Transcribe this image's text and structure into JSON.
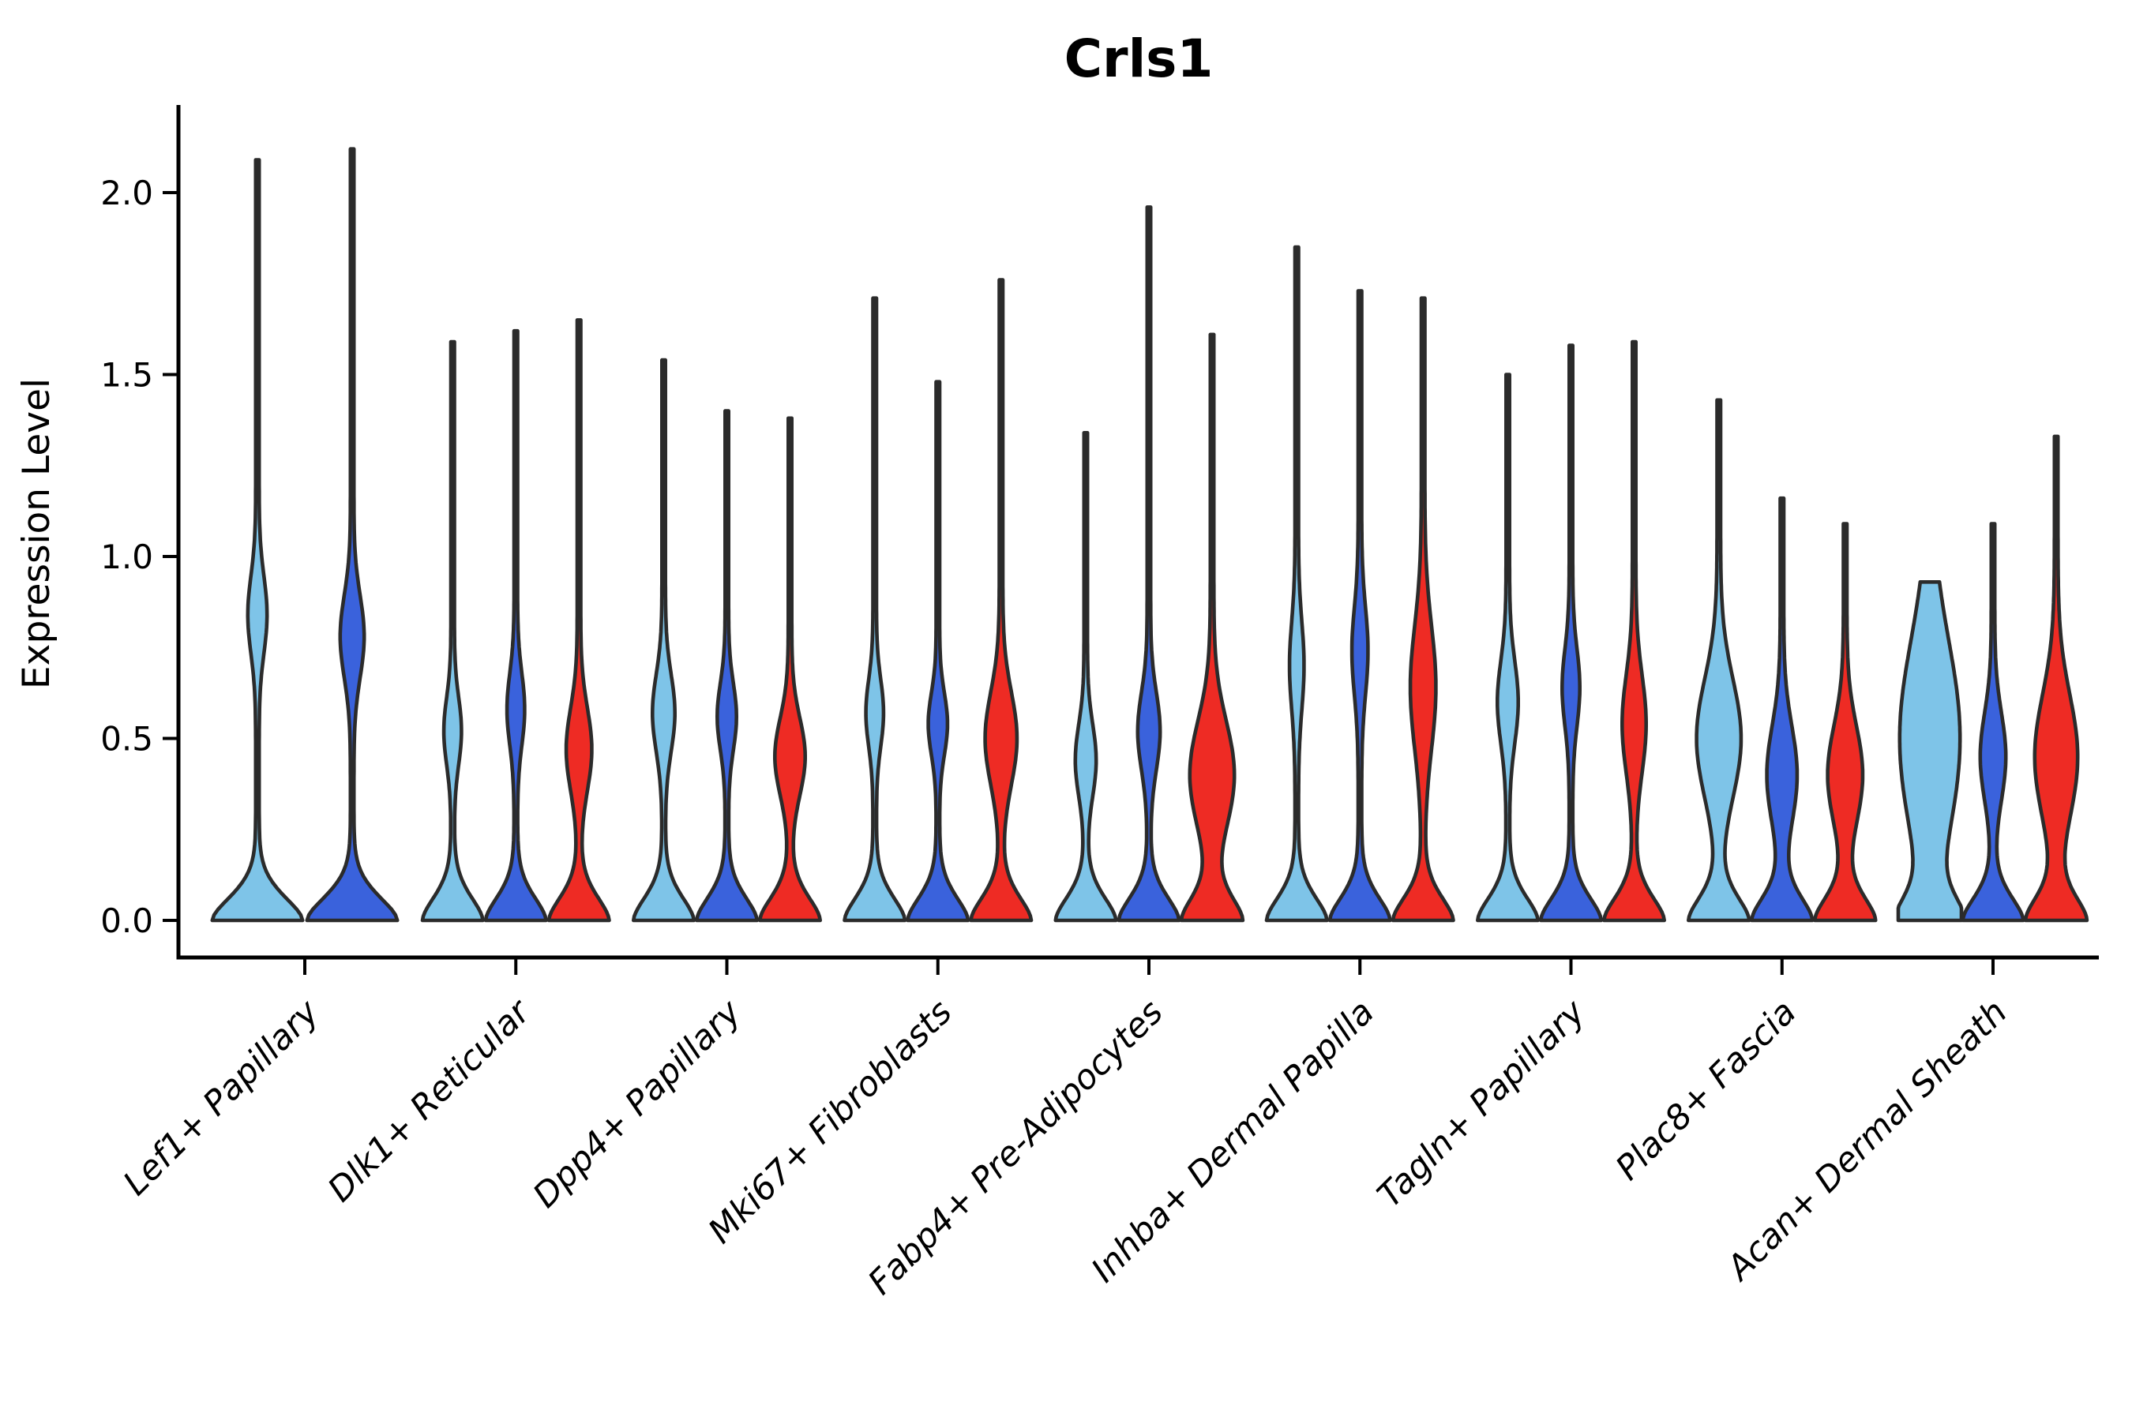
{
  "title": "Crls1",
  "y_axis": {
    "label": "Expression Level",
    "ticks": [
      "0.0",
      "0.5",
      "1.0",
      "1.5",
      "2.0"
    ],
    "tick_values": [
      0.0,
      0.5,
      1.0,
      1.5,
      2.0
    ]
  },
  "colors": {
    "split_light_blue": "#7EC4E8",
    "split_dark_blue": "#3A62DC",
    "split_red": "#EE2B24",
    "violin_outline": "#2B2B2B",
    "axis": "#000000"
  },
  "chart_data": {
    "type": "violin",
    "title": "Crls1",
    "xlabel": "",
    "ylabel": "Expression Level",
    "ylim": [
      -0.06,
      2.25
    ],
    "grid": false,
    "legend_position": "none",
    "categories": [
      "Lef1+ Papillary",
      "Dlk1+ Reticular",
      "Dpp4+ Papillary",
      "Mki67+ Fibroblasts",
      "Fabp4+ Pre-Adipocytes",
      "Inhba+ Dermal Papilla",
      "Tagln+ Papillary",
      "Plac8+ Fascia",
      "Acan+ Dermal Sheath"
    ],
    "split_colors": [
      "#7EC4E8",
      "#3A62DC",
      "#EE2B24"
    ],
    "note": "Split violin plot; all violins have a dense mass at 0 plus a mid-expression bulge (approximated KDE: center c, sigma s, amplitude a in px) and a thin tail reaching max.",
    "violins": [
      {
        "cat": 0,
        "color": 0,
        "max": 2.09,
        "bumps": [
          {
            "c": 0.84,
            "s": 0.15,
            "a": 10
          }
        ]
      },
      {
        "cat": 0,
        "color": 1,
        "max": 2.12,
        "bumps": [
          {
            "c": 0.78,
            "s": 0.16,
            "a": 13
          }
        ]
      },
      {
        "cat": 1,
        "color": 0,
        "max": 1.59,
        "bumps": [
          {
            "c": 0.52,
            "s": 0.13,
            "a": 9
          }
        ]
      },
      {
        "cat": 1,
        "color": 1,
        "max": 1.62,
        "bumps": [
          {
            "c": 0.58,
            "s": 0.14,
            "a": 9
          }
        ]
      },
      {
        "cat": 1,
        "color": 2,
        "max": 1.65,
        "bumps": [
          {
            "c": 0.47,
            "s": 0.16,
            "a": 14
          }
        ]
      },
      {
        "cat": 2,
        "color": 0,
        "max": 1.54,
        "bumps": [
          {
            "c": 0.57,
            "s": 0.15,
            "a": 12
          }
        ]
      },
      {
        "cat": 2,
        "color": 1,
        "max": 1.4,
        "bumps": [
          {
            "c": 0.56,
            "s": 0.13,
            "a": 10
          }
        ]
      },
      {
        "cat": 2,
        "color": 2,
        "max": 1.38,
        "bumps": [
          {
            "c": 0.45,
            "s": 0.15,
            "a": 17
          }
        ]
      },
      {
        "cat": 3,
        "color": 0,
        "max": 1.71,
        "bumps": [
          {
            "c": 0.57,
            "s": 0.13,
            "a": 9
          }
        ]
      },
      {
        "cat": 3,
        "color": 1,
        "max": 1.48,
        "bumps": [
          {
            "c": 0.54,
            "s": 0.12,
            "a": 10
          }
        ]
      },
      {
        "cat": 3,
        "color": 2,
        "max": 1.76,
        "bumps": [
          {
            "c": 0.5,
            "s": 0.18,
            "a": 18
          }
        ]
      },
      {
        "cat": 4,
        "color": 0,
        "max": 1.34,
        "bumps": [
          {
            "c": 0.44,
            "s": 0.14,
            "a": 11
          }
        ]
      },
      {
        "cat": 4,
        "color": 1,
        "max": 1.96,
        "bumps": [
          {
            "c": 0.52,
            "s": 0.15,
            "a": 12
          }
        ]
      },
      {
        "cat": 4,
        "color": 2,
        "max": 1.61,
        "bumps": [
          {
            "c": 0.4,
            "s": 0.21,
            "a": 26
          }
        ]
      },
      {
        "cat": 5,
        "color": 0,
        "max": 1.85,
        "bumps": [
          {
            "c": 0.7,
            "s": 0.17,
            "a": 7
          }
        ]
      },
      {
        "cat": 5,
        "color": 1,
        "max": 1.73,
        "bumps": [
          {
            "c": 0.74,
            "s": 0.17,
            "a": 8
          }
        ]
      },
      {
        "cat": 5,
        "color": 2,
        "max": 1.71,
        "bumps": [
          {
            "c": 0.64,
            "s": 0.24,
            "a": 14
          }
        ]
      },
      {
        "cat": 6,
        "color": 0,
        "max": 1.5,
        "bumps": [
          {
            "c": 0.6,
            "s": 0.16,
            "a": 11
          }
        ]
      },
      {
        "cat": 6,
        "color": 1,
        "max": 1.58,
        "bumps": [
          {
            "c": 0.64,
            "s": 0.15,
            "a": 9
          }
        ]
      },
      {
        "cat": 6,
        "color": 2,
        "max": 1.59,
        "bumps": [
          {
            "c": 0.54,
            "s": 0.19,
            "a": 13
          }
        ]
      },
      {
        "cat": 7,
        "color": 0,
        "max": 1.43,
        "bumps": [
          {
            "c": 0.5,
            "s": 0.23,
            "a": 26
          }
        ]
      },
      {
        "cat": 7,
        "color": 1,
        "max": 1.16,
        "bumps": [
          {
            "c": 0.4,
            "s": 0.19,
            "a": 17
          }
        ]
      },
      {
        "cat": 7,
        "color": 2,
        "max": 1.09,
        "bumps": [
          {
            "c": 0.4,
            "s": 0.19,
            "a": 20
          }
        ]
      },
      {
        "cat": 8,
        "color": 0,
        "max": 0.93,
        "flat_top": true,
        "bumps": [
          {
            "c": 0.5,
            "s": 0.38,
            "a": 36
          }
        ]
      },
      {
        "cat": 8,
        "color": 1,
        "max": 1.09,
        "bumps": [
          {
            "c": 0.45,
            "s": 0.17,
            "a": 14
          }
        ]
      },
      {
        "cat": 8,
        "color": 2,
        "max": 1.33,
        "bumps": [
          {
            "c": 0.45,
            "s": 0.24,
            "a": 25
          }
        ]
      }
    ]
  }
}
